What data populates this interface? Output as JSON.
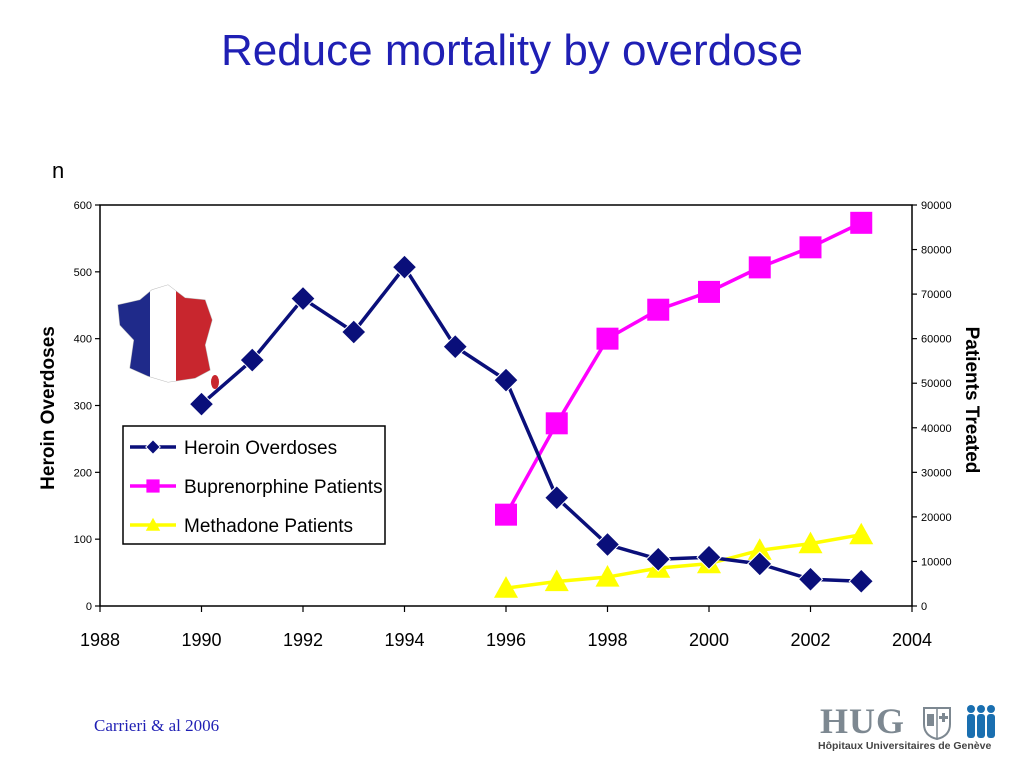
{
  "slide": {
    "title": "Reduce mortality by overdose",
    "citation": "Carrieri & al 2006",
    "logo_text": "HUG",
    "logo_subtitle": "Hôpitaux Universitaires de Genève"
  },
  "chart_data": {
    "type": "line",
    "corner_label": "n",
    "y_left_label": "Heroin Overdoses",
    "y_right_label": "Patients Treated",
    "x_ticks": [
      1988,
      1990,
      1992,
      1994,
      1996,
      1998,
      2000,
      2002,
      2004
    ],
    "y_left_ticks": [
      0,
      100,
      200,
      300,
      400,
      500,
      600
    ],
    "y_right_ticks": [
      0,
      10000,
      20000,
      30000,
      40000,
      50000,
      60000,
      70000,
      80000,
      90000
    ],
    "xlim": [
      1988,
      2004
    ],
    "ylim_left": [
      0,
      600
    ],
    "ylim_right": [
      0,
      90000
    ],
    "grid": false,
    "legend_position": "left",
    "series": [
      {
        "name": "Heroin Overdoses",
        "axis": "left",
        "marker": "diamond",
        "color": "#0a0f7a",
        "x": [
          1990,
          1991,
          1992,
          1993,
          1994,
          1995,
          1996,
          1997,
          1998,
          1999,
          2000,
          2001,
          2002,
          2003
        ],
        "y": [
          302,
          368,
          460,
          410,
          507,
          388,
          338,
          162,
          92,
          70,
          73,
          63,
          40,
          37
        ]
      },
      {
        "name": "Buprenorphine Patients",
        "axis": "right",
        "marker": "square",
        "color": "#ff00ff",
        "x": [
          1996,
          1997,
          1998,
          1999,
          2000,
          2001,
          2002,
          2003
        ],
        "y": [
          20500,
          41000,
          60000,
          66500,
          70500,
          76000,
          80500,
          86000
        ]
      },
      {
        "name": "Methadone Patients",
        "axis": "right",
        "marker": "triangle",
        "color": "#ffff00",
        "x": [
          1996,
          1997,
          1998,
          1999,
          2000,
          2001,
          2002,
          2003
        ],
        "y": [
          4000,
          5500,
          6500,
          8500,
          9500,
          12500,
          14000,
          16000
        ]
      }
    ]
  }
}
